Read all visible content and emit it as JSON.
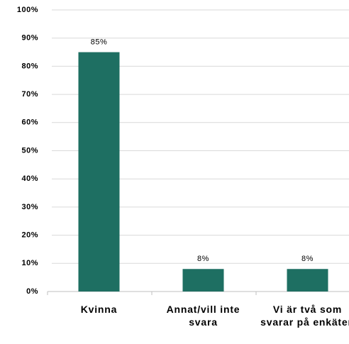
{
  "chart_data": {
    "type": "bar",
    "categories": [
      "Kvinna",
      "Annat/vill inte svara",
      "Vi är två som svarar på enkäten"
    ],
    "values": [
      85,
      8,
      8
    ],
    "value_labels": [
      "85%",
      "8%",
      "8%"
    ],
    "color": "#1e6f62",
    "ylim": [
      0,
      100
    ],
    "yticks": [
      {
        "value": 0,
        "label": "0%"
      },
      {
        "value": 10,
        "label": "10%"
      },
      {
        "value": 20,
        "label": "20%"
      },
      {
        "value": 30,
        "label": "30%"
      },
      {
        "value": 40,
        "label": "40%"
      },
      {
        "value": 50,
        "label": "50%"
      },
      {
        "value": 60,
        "label": "60%"
      },
      {
        "value": 70,
        "label": "70%"
      },
      {
        "value": 80,
        "label": "80%"
      },
      {
        "value": 90,
        "label": "90%"
      },
      {
        "value": 100,
        "label": "100%"
      }
    ],
    "grid": true
  }
}
